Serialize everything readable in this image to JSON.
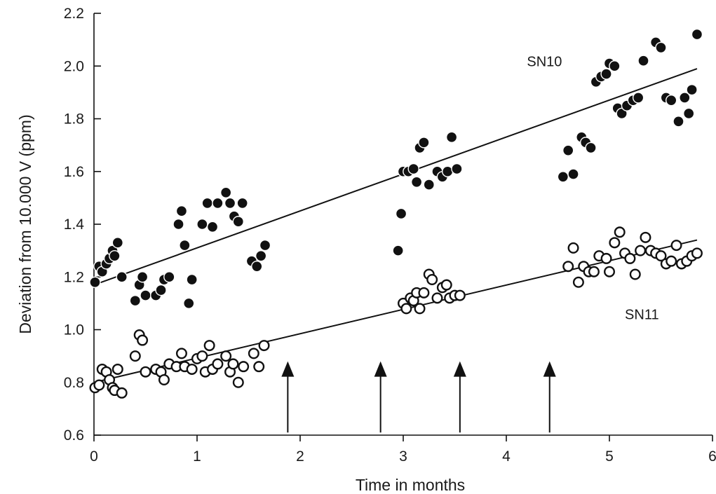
{
  "chart_data": {
    "type": "scatter",
    "xlabel": "Time in months",
    "ylabel": "Deviation from 10.000 V  (ppm)",
    "xlim": [
      0,
      6
    ],
    "ylim": [
      0.6,
      2.2
    ],
    "x_ticks": [
      "0",
      "1",
      "2",
      "3",
      "4",
      "5",
      "6"
    ],
    "y_ticks": [
      "0.6",
      "0.8",
      "1.0",
      "1.2",
      "1.4",
      "1.6",
      "1.8",
      "2.0",
      "2.2"
    ],
    "grid": false,
    "series": [
      {
        "name": "SN10",
        "marker": "filled-circle",
        "trend": [
          [
            0,
            1.17
          ],
          [
            5.85,
            1.99
          ]
        ],
        "points": [
          [
            0.01,
            1.18
          ],
          [
            0.05,
            1.24
          ],
          [
            0.08,
            1.22
          ],
          [
            0.12,
            1.25
          ],
          [
            0.15,
            1.27
          ],
          [
            0.18,
            1.3
          ],
          [
            0.2,
            1.28
          ],
          [
            0.23,
            1.33
          ],
          [
            0.27,
            1.2
          ],
          [
            0.4,
            1.11
          ],
          [
            0.44,
            1.17
          ],
          [
            0.47,
            1.2
          ],
          [
            0.5,
            1.13
          ],
          [
            0.6,
            1.13
          ],
          [
            0.65,
            1.15
          ],
          [
            0.68,
            1.19
          ],
          [
            0.73,
            1.2
          ],
          [
            0.82,
            1.4
          ],
          [
            0.85,
            1.45
          ],
          [
            0.88,
            1.32
          ],
          [
            0.92,
            1.1
          ],
          [
            0.95,
            1.19
          ],
          [
            1.05,
            1.4
          ],
          [
            1.1,
            1.48
          ],
          [
            1.15,
            1.39
          ],
          [
            1.2,
            1.48
          ],
          [
            1.28,
            1.52
          ],
          [
            1.32,
            1.48
          ],
          [
            1.36,
            1.43
          ],
          [
            1.4,
            1.41
          ],
          [
            1.44,
            1.48
          ],
          [
            1.53,
            1.26
          ],
          [
            1.58,
            1.24
          ],
          [
            1.62,
            1.28
          ],
          [
            1.66,
            1.32
          ],
          [
            2.95,
            1.3
          ],
          [
            2.98,
            1.44
          ],
          [
            3.0,
            1.6
          ],
          [
            3.05,
            1.6
          ],
          [
            3.1,
            1.61
          ],
          [
            3.13,
            1.56
          ],
          [
            3.16,
            1.69
          ],
          [
            3.2,
            1.71
          ],
          [
            3.25,
            1.55
          ],
          [
            3.33,
            1.6
          ],
          [
            3.38,
            1.58
          ],
          [
            3.43,
            1.6
          ],
          [
            3.47,
            1.73
          ],
          [
            3.52,
            1.61
          ],
          [
            4.55,
            1.58
          ],
          [
            4.6,
            1.68
          ],
          [
            4.65,
            1.59
          ],
          [
            4.73,
            1.73
          ],
          [
            4.77,
            1.71
          ],
          [
            4.82,
            1.69
          ],
          [
            4.87,
            1.94
          ],
          [
            4.92,
            1.96
          ],
          [
            4.97,
            1.97
          ],
          [
            5.0,
            2.01
          ],
          [
            5.05,
            2.0
          ],
          [
            5.08,
            1.84
          ],
          [
            5.12,
            1.82
          ],
          [
            5.17,
            1.85
          ],
          [
            5.23,
            1.87
          ],
          [
            5.28,
            1.88
          ],
          [
            5.33,
            2.02
          ],
          [
            5.45,
            2.09
          ],
          [
            5.5,
            2.07
          ],
          [
            5.55,
            1.88
          ],
          [
            5.6,
            1.87
          ],
          [
            5.67,
            1.79
          ],
          [
            5.73,
            1.88
          ],
          [
            5.77,
            1.82
          ],
          [
            5.8,
            1.91
          ],
          [
            5.85,
            2.12
          ]
        ]
      },
      {
        "name": "SN11",
        "marker": "open-circle",
        "trend": [
          [
            0,
            0.8
          ],
          [
            5.85,
            1.34
          ]
        ],
        "points": [
          [
            0.01,
            0.78
          ],
          [
            0.05,
            0.79
          ],
          [
            0.08,
            0.85
          ],
          [
            0.12,
            0.84
          ],
          [
            0.15,
            0.81
          ],
          [
            0.18,
            0.78
          ],
          [
            0.2,
            0.77
          ],
          [
            0.23,
            0.85
          ],
          [
            0.27,
            0.76
          ],
          [
            0.4,
            0.9
          ],
          [
            0.44,
            0.98
          ],
          [
            0.47,
            0.96
          ],
          [
            0.5,
            0.84
          ],
          [
            0.6,
            0.85
          ],
          [
            0.65,
            0.84
          ],
          [
            0.68,
            0.81
          ],
          [
            0.73,
            0.87
          ],
          [
            0.8,
            0.86
          ],
          [
            0.85,
            0.91
          ],
          [
            0.88,
            0.86
          ],
          [
            0.95,
            0.85
          ],
          [
            1.0,
            0.89
          ],
          [
            1.05,
            0.9
          ],
          [
            1.08,
            0.84
          ],
          [
            1.12,
            0.94
          ],
          [
            1.15,
            0.85
          ],
          [
            1.2,
            0.87
          ],
          [
            1.28,
            0.9
          ],
          [
            1.32,
            0.84
          ],
          [
            1.35,
            0.87
          ],
          [
            1.4,
            0.8
          ],
          [
            1.45,
            0.86
          ],
          [
            1.55,
            0.91
          ],
          [
            1.6,
            0.86
          ],
          [
            1.65,
            0.94
          ],
          [
            3.0,
            1.1
          ],
          [
            3.03,
            1.08
          ],
          [
            3.07,
            1.12
          ],
          [
            3.1,
            1.11
          ],
          [
            3.13,
            1.14
          ],
          [
            3.16,
            1.08
          ],
          [
            3.2,
            1.14
          ],
          [
            3.25,
            1.21
          ],
          [
            3.28,
            1.19
          ],
          [
            3.33,
            1.12
          ],
          [
            3.38,
            1.16
          ],
          [
            3.42,
            1.17
          ],
          [
            3.45,
            1.12
          ],
          [
            3.5,
            1.13
          ],
          [
            3.55,
            1.13
          ],
          [
            4.6,
            1.24
          ],
          [
            4.65,
            1.31
          ],
          [
            4.7,
            1.18
          ],
          [
            4.75,
            1.24
          ],
          [
            4.8,
            1.22
          ],
          [
            4.85,
            1.22
          ],
          [
            4.9,
            1.28
          ],
          [
            4.97,
            1.27
          ],
          [
            5.0,
            1.22
          ],
          [
            5.05,
            1.33
          ],
          [
            5.1,
            1.37
          ],
          [
            5.15,
            1.29
          ],
          [
            5.2,
            1.27
          ],
          [
            5.25,
            1.21
          ],
          [
            5.3,
            1.3
          ],
          [
            5.35,
            1.35
          ],
          [
            5.4,
            1.3
          ],
          [
            5.45,
            1.29
          ],
          [
            5.5,
            1.28
          ],
          [
            5.55,
            1.25
          ],
          [
            5.6,
            1.26
          ],
          [
            5.65,
            1.32
          ],
          [
            5.7,
            1.25
          ],
          [
            5.75,
            1.26
          ],
          [
            5.8,
            1.28
          ],
          [
            5.85,
            1.29
          ]
        ]
      }
    ],
    "series_labels": [
      {
        "text": "SN10",
        "x": 4.2,
        "y": 2.0
      },
      {
        "text": "SN11",
        "x": 5.15,
        "y": 1.04
      }
    ],
    "annotations": [
      {
        "type": "arrow-up",
        "x": 1.88,
        "y_from": 0.61,
        "y_to": 0.88
      },
      {
        "type": "arrow-up",
        "x": 2.78,
        "y_from": 0.61,
        "y_to": 0.88
      },
      {
        "type": "arrow-up",
        "x": 3.55,
        "y_from": 0.61,
        "y_to": 0.88
      },
      {
        "type": "arrow-up",
        "x": 4.42,
        "y_from": 0.61,
        "y_to": 0.88
      }
    ]
  }
}
